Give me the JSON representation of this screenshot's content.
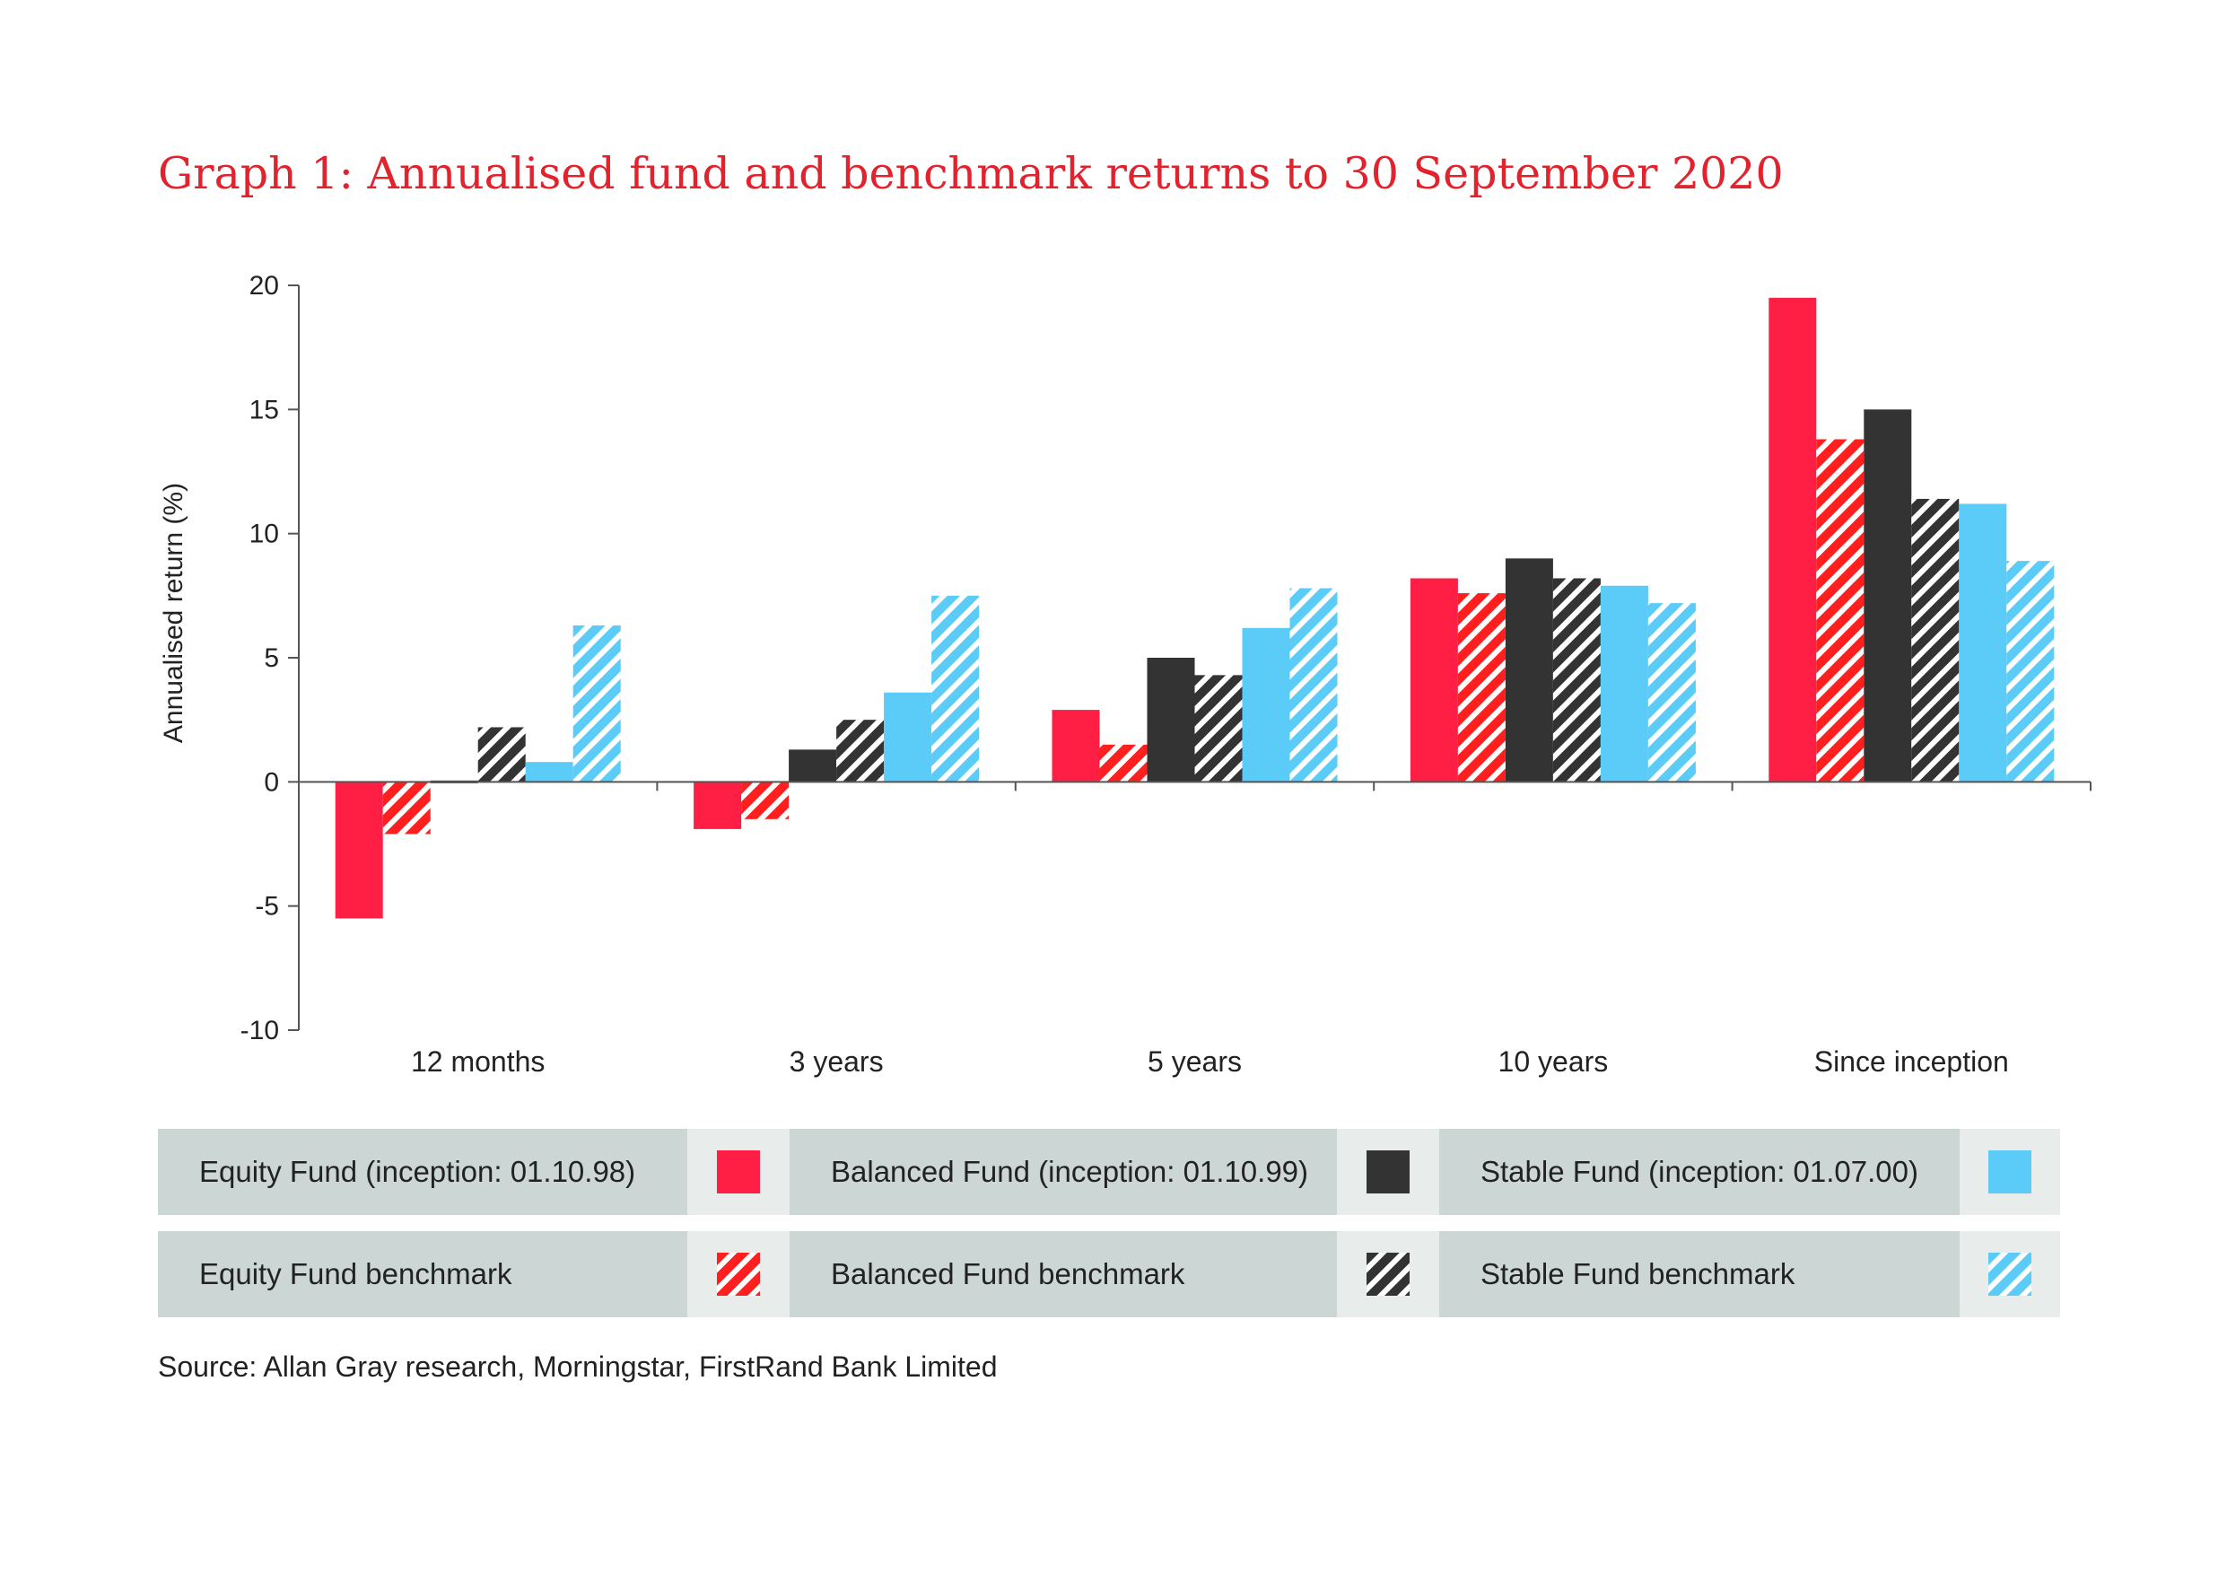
{
  "chart_data": {
    "type": "bar",
    "title": "Graph 1: Annualised fund and benchmark returns to 30 September 2020",
    "ylabel": "Annualised return (%)",
    "xlabel": "",
    "ylim": [
      -10,
      20
    ],
    "yticks": [
      20,
      15,
      10,
      5,
      0,
      -5,
      -10
    ],
    "ytick_labels": [
      "20",
      "15",
      "10",
      "5",
      "0",
      "-5",
      "-10"
    ],
    "grid": false,
    "categories": [
      "12 months",
      "3 years",
      "5 years",
      "10 years",
      "Since inception"
    ],
    "series": [
      {
        "name": "Equity Fund (inception: 01.10.98)",
        "color": "#ff1f44",
        "pattern": "solid",
        "values": [
          -5.5,
          -1.9,
          2.9,
          8.2,
          19.5
        ]
      },
      {
        "name": "Equity Fund benchmark",
        "color": "#ff1f1f",
        "pattern": "hatched",
        "values": [
          -2.1,
          -1.5,
          1.5,
          7.6,
          13.8
        ]
      },
      {
        "name": "Balanced Fund (inception: 01.10.99)",
        "color": "#333333",
        "pattern": "solid",
        "values": [
          0.0,
          1.3,
          5.0,
          9.0,
          15.0
        ]
      },
      {
        "name": "Balanced Fund benchmark",
        "color": "#333333",
        "pattern": "hatched",
        "values": [
          2.2,
          2.5,
          4.3,
          8.2,
          11.4
        ]
      },
      {
        "name": "Stable Fund (inception: 01.07.00)",
        "color": "#5bcbf8",
        "pattern": "solid",
        "values": [
          0.8,
          3.6,
          6.2,
          7.9,
          11.2
        ]
      },
      {
        "name": "Stable Fund benchmark",
        "color": "#5bcbf8",
        "pattern": "hatched",
        "values": [
          6.3,
          7.5,
          7.8,
          7.2,
          8.9
        ]
      }
    ]
  },
  "legend": {
    "equity": "Equity Fund (inception: 01.10.98)",
    "balanced": "Balanced Fund (inception: 01.10.99)",
    "stable": "Stable Fund (inception: 01.07.00)",
    "equity_bm": "Equity Fund benchmark",
    "balanced_bm": "Balanced Fund benchmark",
    "stable_bm": "Stable Fund benchmark"
  },
  "source": "Source: Allan Gray research, Morningstar, FirstRand Bank Limited"
}
